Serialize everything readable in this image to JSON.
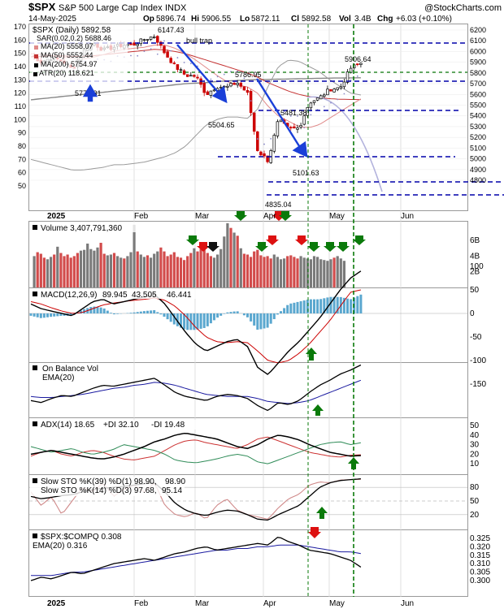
{
  "header": {
    "symbol": "$SPX",
    "name": "S&P 500 Large Cap Index",
    "exchange": "INDX",
    "watermark": "@StockCharts.com",
    "date": "14-May-2025",
    "quote": {
      "open_label": "Op",
      "open": "5896.74",
      "high_label": "Hi",
      "high": "5906.55",
      "low_label": "Lo",
      "low": "5872.11",
      "close_label": "Cl",
      "close": "5892.58",
      "vol_label": "Vol",
      "vol": "3.4B",
      "chg_label": "Chg",
      "chg": "+6.03 (+0.10%)"
    }
  },
  "legends": {
    "price_1": "$SPX (Daily) 5892.58",
    "price_2": "SAR(0.02,0.2) 5688.46",
    "price_3": "MA(20) 5558.07",
    "price_4": "MA(50) 5552.44",
    "price_5": "MA(200) 5754.97",
    "atr": "ATR(20) 118.621",
    "volume": "Volume 3,407,791,360",
    "macd_prefix": "MACD(12,26,9)",
    "macd_1": "89.945",
    "macd_2": "43.505",
    "macd_3": "46.441",
    "obv": "On Balance Vol",
    "obv_ema": "EMA(20)",
    "adx_prefix": "ADX(14) 18.65",
    "adx_pdi": "+DI 32.10",
    "adx_mdi": "-DI 19.48",
    "sto1_prefix": "Slow STO %K(39) %D(1) 98.90,",
    "sto1_val": "98.90",
    "sto2_prefix": "Slow STO %K(14) %D(3) 97.68,",
    "sto2_val": "95.14",
    "ratio": "$SPX:$COMPQ 0.308",
    "ratio_ema": "EMA(20) 0.316"
  },
  "annotations": {
    "peak": "6147.43",
    "bull_trap": "bull trap",
    "mar_low": "5504.65",
    "rally_high": "5786.95",
    "level_5481": "5481.38",
    "level_5101": "5101.63",
    "apr_low": "4835.04",
    "recent": "5906.64",
    "left_lbl": "5773.31"
  },
  "axes": {
    "months": [
      "2025",
      "Feb",
      "Mar",
      "Apr",
      "May",
      "Jun"
    ],
    "price_right": [
      "6200",
      "6100",
      "6000",
      "5900",
      "5800",
      "5700",
      "5600",
      "5500",
      "5400",
      "5300",
      "5200",
      "5100",
      "5000",
      "4900",
      "4800"
    ],
    "atr_left": [
      "170",
      "160",
      "150",
      "140",
      "130",
      "120",
      "110",
      "100",
      "90",
      "80",
      "70",
      "60",
      "50"
    ],
    "volume_right": [
      "6B",
      "4B",
      "2B"
    ],
    "macd_right": [
      "100",
      "50",
      "0",
      "-50",
      "-100",
      "-150"
    ],
    "adx_right": [
      "50",
      "40",
      "30",
      "20",
      "10"
    ],
    "sto_right": [
      "80",
      "50",
      "20"
    ],
    "ratio_right": [
      "0.325",
      "0.320",
      "0.315",
      "0.310",
      "0.305",
      "0.300"
    ]
  },
  "colors": {
    "up": "#000000",
    "down": "#cc0000",
    "ma20": "#e08a8a",
    "ma50": "#c43232",
    "ma200": "#888888",
    "atr": "#9a9a9a",
    "sar": "#b3b3dd",
    "volume_up": "#7a7a7a",
    "volume_down": "#d24b4b",
    "macd_line": "#000000",
    "macd_signal": "#cc0000",
    "histogram": "#5aa7cf",
    "obv": "#000000",
    "ema": "#1a1aa0",
    "pdi": "#2e8b57",
    "mdi": "#cc3333",
    "level": "#0000aa",
    "arrow_blue": "#1a3fd8",
    "arrow_green": "#0a7a0a",
    "arrow_red": "#dd1111",
    "vline": "#0a7a0a"
  },
  "chart_data": {
    "type": "line",
    "title": "$SPX S&P 500 Large Cap Index INDX",
    "x": [
      "Dec-26",
      "Dec-30",
      "Jan-03",
      "Jan-08",
      "Jan-13",
      "Jan-17",
      "Jan-22",
      "Jan-27",
      "Jan-31",
      "Feb-05",
      "Feb-10",
      "Feb-14",
      "Feb-19",
      "Feb-24",
      "Feb-27",
      "Mar-04",
      "Mar-07",
      "Mar-12",
      "Mar-17",
      "Mar-21",
      "Mar-26",
      "Mar-31",
      "Apr-04",
      "Apr-08",
      "Apr-11",
      "Apr-16",
      "Apr-22",
      "Apr-25",
      "Apr-30",
      "May-05",
      "May-08",
      "May-12",
      "May-14"
    ],
    "series": [
      {
        "name": "$SPX (Daily)",
        "values": [
          5970,
          5905,
          5942,
          5918,
          5836,
          5996,
          6086,
          6012,
          6040,
          6061,
          6066,
          6114,
          6144,
          5983,
          5861,
          5778,
          5770,
          5599,
          5675,
          5667,
          5712,
          5611,
          5074,
          4982,
          5363,
          5275,
          5287,
          5525,
          5569,
          5650,
          5663,
          5844,
          5892
        ]
      },
      {
        "name": "MA(20)",
        "values": [
          5980,
          5975,
          5965,
          5950,
          5935,
          5930,
          5945,
          5970,
          6000,
          6020,
          6030,
          6040,
          6060,
          6060,
          6030,
          5980,
          5920,
          5850,
          5780,
          5720,
          5690,
          5670,
          5610,
          5490,
          5400,
          5350,
          5300,
          5290,
          5320,
          5380,
          5440,
          5500,
          5558
        ]
      },
      {
        "name": "MA(50)",
        "values": [
          5950,
          5955,
          5960,
          5960,
          5955,
          5955,
          5960,
          5970,
          5980,
          5990,
          6000,
          6010,
          6020,
          6015,
          6000,
          5980,
          5950,
          5920,
          5890,
          5860,
          5830,
          5800,
          5760,
          5710,
          5670,
          5630,
          5600,
          5580,
          5570,
          5560,
          5555,
          5553,
          5552
        ]
      },
      {
        "name": "MA(200)",
        "values": [
          5550,
          5560,
          5570,
          5580,
          5590,
          5600,
          5610,
          5620,
          5630,
          5640,
          5650,
          5660,
          5670,
          5680,
          5690,
          5700,
          5705,
          5710,
          5720,
          5725,
          5730,
          5735,
          5738,
          5740,
          5742,
          5744,
          5746,
          5748,
          5750,
          5752,
          5753,
          5754,
          5755
        ]
      }
    ],
    "ylim": [
      4780,
      6250
    ],
    "xlabel": "",
    "ylabel": ""
  }
}
